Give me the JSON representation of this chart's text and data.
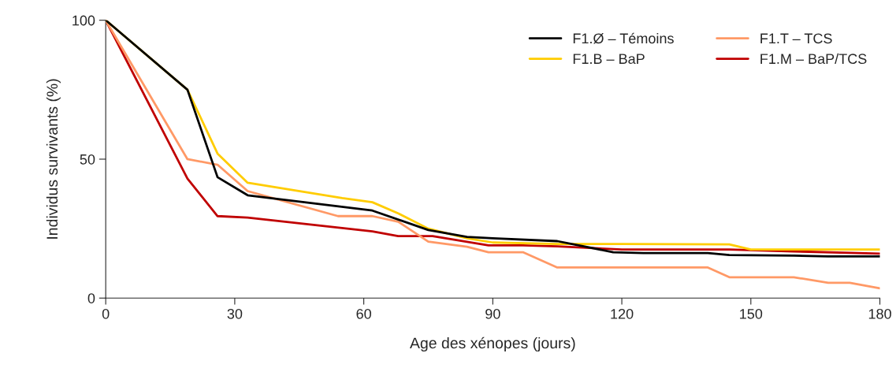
{
  "chart_data": {
    "type": "line",
    "xlabel": "Age des xénopes (jours)",
    "ylabel": "Individus survivants (%)",
    "xlim": [
      0,
      180
    ],
    "xticks": [
      0,
      30,
      60,
      90,
      120,
      150,
      180
    ],
    "ylim": [
      0,
      100
    ],
    "yticks": [
      0,
      50,
      100
    ],
    "grid": false,
    "legend": "top right",
    "marker": "none",
    "line_style": "solid",
    "series": [
      {
        "name": "F1.Ø – Témoins",
        "color": "#000000",
        "x": [
          0,
          19,
          26,
          33,
          62,
          75,
          84,
          90,
          105,
          110,
          118,
          125,
          140,
          145,
          160,
          168,
          180
        ],
        "values": [
          100,
          75,
          43.5,
          37,
          31.5,
          24.5,
          22,
          21.5,
          20.5,
          19,
          16.5,
          16.2,
          16.2,
          15.5,
          15.3,
          15,
          15
        ]
      },
      {
        "name": "F1.B – BaP",
        "color": "#ffcc00",
        "x": [
          0,
          19,
          26,
          33,
          55,
          62,
          68,
          75,
          84,
          90,
          105,
          120,
          145,
          150,
          180
        ],
        "values": [
          100,
          75,
          52,
          41.5,
          36,
          34.5,
          30.5,
          25,
          21.5,
          20,
          19.5,
          19.5,
          19.3,
          17.5,
          17.5
        ]
      },
      {
        "name": "F1.T – TCS",
        "color": "#ff9966",
        "x": [
          0,
          19,
          26,
          33,
          54,
          62,
          68,
          75,
          84,
          89,
          97,
          105,
          140,
          145,
          160,
          168,
          173,
          180
        ],
        "values": [
          100,
          50,
          48,
          38.5,
          29.5,
          29.5,
          27.5,
          20.3,
          18.5,
          16.5,
          16.5,
          11,
          11,
          7.5,
          7.5,
          5.5,
          5.5,
          3.5
        ]
      },
      {
        "name": "F1.M – BaP/TCS",
        "color": "#c00000",
        "x": [
          0,
          19,
          26,
          33,
          62,
          68,
          76,
          89,
          97,
          105,
          120,
          145,
          160,
          180
        ],
        "values": [
          100,
          43,
          29.5,
          29,
          24,
          22.3,
          22.3,
          19,
          19,
          18.6,
          17.5,
          17.5,
          16.8,
          16
        ]
      }
    ]
  }
}
